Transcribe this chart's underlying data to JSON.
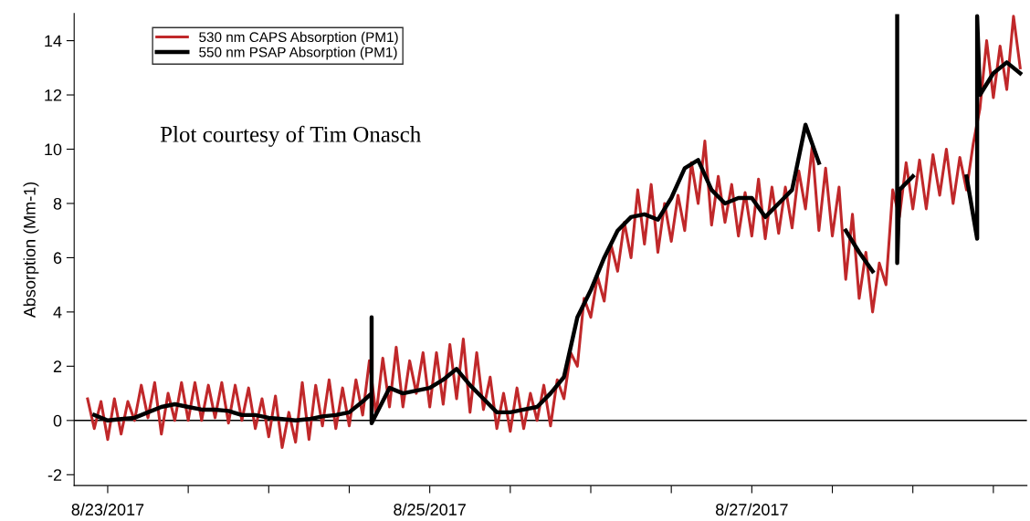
{
  "chart_data": {
    "type": "line",
    "ylabel": "Absorption (Mm-1)",
    "annotations": [
      "Plot courtesy of Tim Onasch"
    ],
    "ylim": [
      -2.4,
      15
    ],
    "yticks": [
      -2,
      0,
      2,
      4,
      6,
      8,
      10,
      12,
      14
    ],
    "xlim": [
      "2017-08-22T19:00",
      "2017-08-28T17:00"
    ],
    "xticks": [
      {
        "value": "2017-08-23",
        "label": "8/23/2017"
      },
      {
        "value": "2017-08-23T12:00",
        "label": null
      },
      {
        "value": "2017-08-24",
        "label": null
      },
      {
        "value": "2017-08-24T12:00",
        "label": null
      },
      {
        "value": "2017-08-25",
        "label": "8/25/2017"
      },
      {
        "value": "2017-08-25T12:00",
        "label": null
      },
      {
        "value": "2017-08-26",
        "label": null
      },
      {
        "value": "2017-08-26T12:00",
        "label": null
      },
      {
        "value": "2017-08-27",
        "label": "8/27/2017"
      },
      {
        "value": "2017-08-27T12:00",
        "label": null
      },
      {
        "value": "2017-08-28",
        "label": null
      },
      {
        "value": "2017-08-28T12:00",
        "label": null
      }
    ],
    "ref_lines": [
      {
        "axis": "y",
        "value": 0,
        "color": "#000000"
      }
    ],
    "legend": "top left",
    "grid": false,
    "series": [
      {
        "name": "530 nm CAPS Absorption (PM1)",
        "color": "#c0282a",
        "x": [
          "2017-08-22T21:00",
          "2017-08-22T22:00",
          "2017-08-22T23:00",
          "2017-08-23T00:00",
          "2017-08-23T01:00",
          "2017-08-23T02:00",
          "2017-08-23T03:00",
          "2017-08-23T04:00",
          "2017-08-23T05:00",
          "2017-08-23T06:00",
          "2017-08-23T07:00",
          "2017-08-23T08:00",
          "2017-08-23T09:00",
          "2017-08-23T10:00",
          "2017-08-23T11:00",
          "2017-08-23T12:00",
          "2017-08-23T13:00",
          "2017-08-23T14:00",
          "2017-08-23T15:00",
          "2017-08-23T16:00",
          "2017-08-23T17:00",
          "2017-08-23T18:00",
          "2017-08-23T19:00",
          "2017-08-23T20:00",
          "2017-08-23T21:00",
          "2017-08-23T22:00",
          "2017-08-23T23:00",
          "2017-08-24T00:00",
          "2017-08-24T01:00",
          "2017-08-24T02:00",
          "2017-08-24T03:00",
          "2017-08-24T04:00",
          "2017-08-24T05:00",
          "2017-08-24T06:00",
          "2017-08-24T07:00",
          "2017-08-24T08:00",
          "2017-08-24T09:00",
          "2017-08-24T10:00",
          "2017-08-24T11:00",
          "2017-08-24T12:00",
          "2017-08-24T13:00",
          "2017-08-24T14:00",
          "2017-08-24T15:00",
          "2017-08-24T16:00",
          "2017-08-24T17:00",
          "2017-08-24T18:00",
          "2017-08-24T19:00",
          "2017-08-24T20:00",
          "2017-08-24T21:00",
          "2017-08-24T22:00",
          "2017-08-24T23:00",
          "2017-08-25T00:00",
          "2017-08-25T01:00",
          "2017-08-25T02:00",
          "2017-08-25T03:00",
          "2017-08-25T04:00",
          "2017-08-25T05:00",
          "2017-08-25T06:00",
          "2017-08-25T07:00",
          "2017-08-25T08:00",
          "2017-08-25T09:00",
          "2017-08-25T10:00",
          "2017-08-25T11:00",
          "2017-08-25T12:00",
          "2017-08-25T13:00",
          "2017-08-25T14:00",
          "2017-08-25T15:00",
          "2017-08-25T16:00",
          "2017-08-25T17:00",
          "2017-08-25T18:00",
          "2017-08-25T19:00",
          "2017-08-25T20:00",
          "2017-08-25T21:00",
          "2017-08-25T22:00",
          "2017-08-25T23:00",
          "2017-08-26T00:00",
          "2017-08-26T01:00",
          "2017-08-26T02:00",
          "2017-08-26T03:00",
          "2017-08-26T04:00",
          "2017-08-26T05:00",
          "2017-08-26T06:00",
          "2017-08-26T07:00",
          "2017-08-26T08:00",
          "2017-08-26T09:00",
          "2017-08-26T10:00",
          "2017-08-26T11:00",
          "2017-08-26T12:00",
          "2017-08-26T13:00",
          "2017-08-26T14:00",
          "2017-08-26T15:00",
          "2017-08-26T16:00",
          "2017-08-26T17:00",
          "2017-08-26T18:00",
          "2017-08-26T19:00",
          "2017-08-26T20:00",
          "2017-08-26T21:00",
          "2017-08-26T22:00",
          "2017-08-26T23:00",
          "2017-08-27T00:00",
          "2017-08-27T01:00",
          "2017-08-27T02:00",
          "2017-08-27T03:00",
          "2017-08-27T04:00",
          "2017-08-27T05:00",
          "2017-08-27T06:00",
          "2017-08-27T07:00",
          "2017-08-27T08:00",
          "2017-08-27T09:00",
          "2017-08-27T10:00",
          "2017-08-27T11:00",
          "2017-08-27T12:00",
          "2017-08-27T13:00",
          "2017-08-27T14:00",
          "2017-08-27T15:00",
          "2017-08-27T16:00",
          "2017-08-27T17:00",
          "2017-08-27T18:00",
          "2017-08-27T19:00",
          "2017-08-27T20:00",
          "2017-08-27T21:00",
          "2017-08-27T22:00",
          "2017-08-27T23:00",
          "2017-08-28T00:00",
          "2017-08-28T01:00",
          "2017-08-28T02:00",
          "2017-08-28T03:00",
          "2017-08-28T04:00",
          "2017-08-28T05:00",
          "2017-08-28T06:00",
          "2017-08-28T07:00",
          "2017-08-28T08:00",
          "2017-08-28T09:00",
          "2017-08-28T10:00",
          "2017-08-28T11:00",
          "2017-08-28T12:00",
          "2017-08-28T13:00",
          "2017-08-28T14:00",
          "2017-08-28T15:00",
          "2017-08-28T16:00"
        ],
        "values": [
          0.8,
          -0.3,
          0.7,
          -0.7,
          0.8,
          -0.5,
          0.7,
          0.0,
          1.3,
          0.1,
          1.4,
          -0.5,
          1.0,
          0.0,
          1.4,
          0.0,
          1.4,
          0.0,
          1.3,
          0.1,
          1.4,
          -0.1,
          1.3,
          0.0,
          1.2,
          -0.3,
          0.8,
          -0.6,
          0.9,
          -1.0,
          0.3,
          -0.8,
          1.4,
          -0.7,
          1.3,
          -0.2,
          1.5,
          -0.3,
          1.2,
          -0.2,
          1.5,
          0.2,
          2.2,
          0.2,
          2.3,
          0.5,
          2.7,
          0.5,
          2.2,
          1.0,
          2.5,
          0.5,
          2.5,
          0.6,
          2.8,
          0.8,
          3.0,
          0.3,
          2.5,
          0.4,
          1.6,
          -0.3,
          1.0,
          -0.4,
          1.2,
          -0.3,
          1.0,
          0.0,
          1.3,
          -0.2,
          1.5,
          0.8,
          2.5,
          2.0,
          4.5,
          3.8,
          5.3,
          4.4,
          6.5,
          5.5,
          7.3,
          6.0,
          8.5,
          6.5,
          8.7,
          6.2,
          8.0,
          6.6,
          8.3,
          7.0,
          9.5,
          8.0,
          10.3,
          7.2,
          9.0,
          7.3,
          8.7,
          6.8,
          8.4,
          6.8,
          8.9,
          6.7,
          8.6,
          6.9,
          8.6,
          7.1,
          9.2,
          7.8,
          10.1,
          7.0,
          9.3,
          6.8,
          8.6,
          5.2,
          7.6,
          4.5,
          6.2,
          4.0,
          5.8,
          5.0,
          8.5,
          7.5,
          9.5,
          7.8,
          9.6,
          7.8,
          9.8,
          8.3,
          10.0,
          8.0,
          9.7,
          8.5,
          10.2,
          11.5,
          14.0,
          11.9,
          13.8,
          12.2,
          14.9,
          13.0
        ]
      },
      {
        "name": "550 nm PSAP Absorption (PM1)",
        "color": "#000000",
        "x": [
          "2017-08-22T22:00",
          "2017-08-23T00:00",
          "2017-08-23T02:00",
          "2017-08-23T04:00",
          "2017-08-23T06:00",
          "2017-08-23T08:00",
          "2017-08-23T10:00",
          "2017-08-23T12:00",
          "2017-08-23T14:00",
          "2017-08-23T16:00",
          "2017-08-23T18:00",
          "2017-08-23T20:00",
          "2017-08-23T22:00",
          "2017-08-24T00:00",
          "2017-08-24T02:00",
          "2017-08-24T04:00",
          "2017-08-24T06:00",
          "2017-08-24T08:00",
          "2017-08-24T10:00",
          "2017-08-24T12:00",
          "2017-08-24T14:00",
          "2017-08-24T15:20",
          "2017-08-24T15:20",
          "2017-08-24T15:20",
          "2017-08-24T18:00",
          "2017-08-24T20:00",
          "2017-08-24T22:00",
          "2017-08-25T00:00",
          "2017-08-25T02:00",
          "2017-08-25T04:00",
          "2017-08-25T06:00",
          "2017-08-25T08:00",
          "2017-08-25T10:00",
          "2017-08-25T12:00",
          "2017-08-25T14:00",
          "2017-08-25T16:00",
          "2017-08-25T18:00",
          "2017-08-25T20:00",
          "2017-08-25T22:00",
          "2017-08-26T00:00",
          "2017-08-26T02:00",
          "2017-08-26T04:00",
          "2017-08-26T06:00",
          "2017-08-26T08:00",
          "2017-08-26T10:00",
          "2017-08-26T12:00",
          "2017-08-26T14:00",
          "2017-08-26T16:00",
          "2017-08-26T18:00",
          "2017-08-26T20:00",
          "2017-08-26T22:00",
          "2017-08-27T00:00",
          "2017-08-27T02:00",
          "2017-08-27T04:00",
          "2017-08-27T06:00",
          "2017-08-27T08:00",
          "2017-08-27T10:00",
          "2017-08-27T12:00",
          "2017-08-27T14:00",
          "2017-08-27T16:00",
          "2017-08-27T18:00",
          "2017-08-27T20:00",
          "2017-08-27T21:40",
          "2017-08-27T21:40",
          "2017-08-27T22:00",
          "2017-08-28T00:00",
          "2017-08-28T02:00",
          "2017-08-28T08:00",
          "2017-08-28T09:35",
          "2017-08-28T09:35",
          "2017-08-28T10:00",
          "2017-08-28T12:00",
          "2017-08-28T14:00",
          "2017-08-28T16:00"
        ],
        "values": [
          0.2,
          0.0,
          0.05,
          0.1,
          0.3,
          0.5,
          0.6,
          0.5,
          0.4,
          0.4,
          0.35,
          0.2,
          0.2,
          0.1,
          0.05,
          0.0,
          0.05,
          0.15,
          0.2,
          0.3,
          0.7,
          1.0,
          3.8,
          -0.1,
          1.2,
          1.0,
          1.1,
          1.2,
          1.5,
          1.9,
          1.3,
          0.8,
          0.3,
          0.3,
          0.4,
          0.5,
          1.0,
          1.6,
          3.8,
          4.8,
          6.0,
          7.0,
          7.5,
          7.6,
          7.4,
          8.2,
          9.3,
          9.6,
          8.5,
          8.0,
          8.2,
          8.2,
          7.5,
          8.0,
          8.5,
          10.9,
          9.5,
          null,
          7.0,
          6.2,
          5.5,
          null,
          14.9,
          5.8,
          8.5,
          9.0,
          null,
          9.0,
          6.7,
          14.9,
          12.0,
          12.8,
          13.2,
          12.8
        ]
      }
    ]
  }
}
